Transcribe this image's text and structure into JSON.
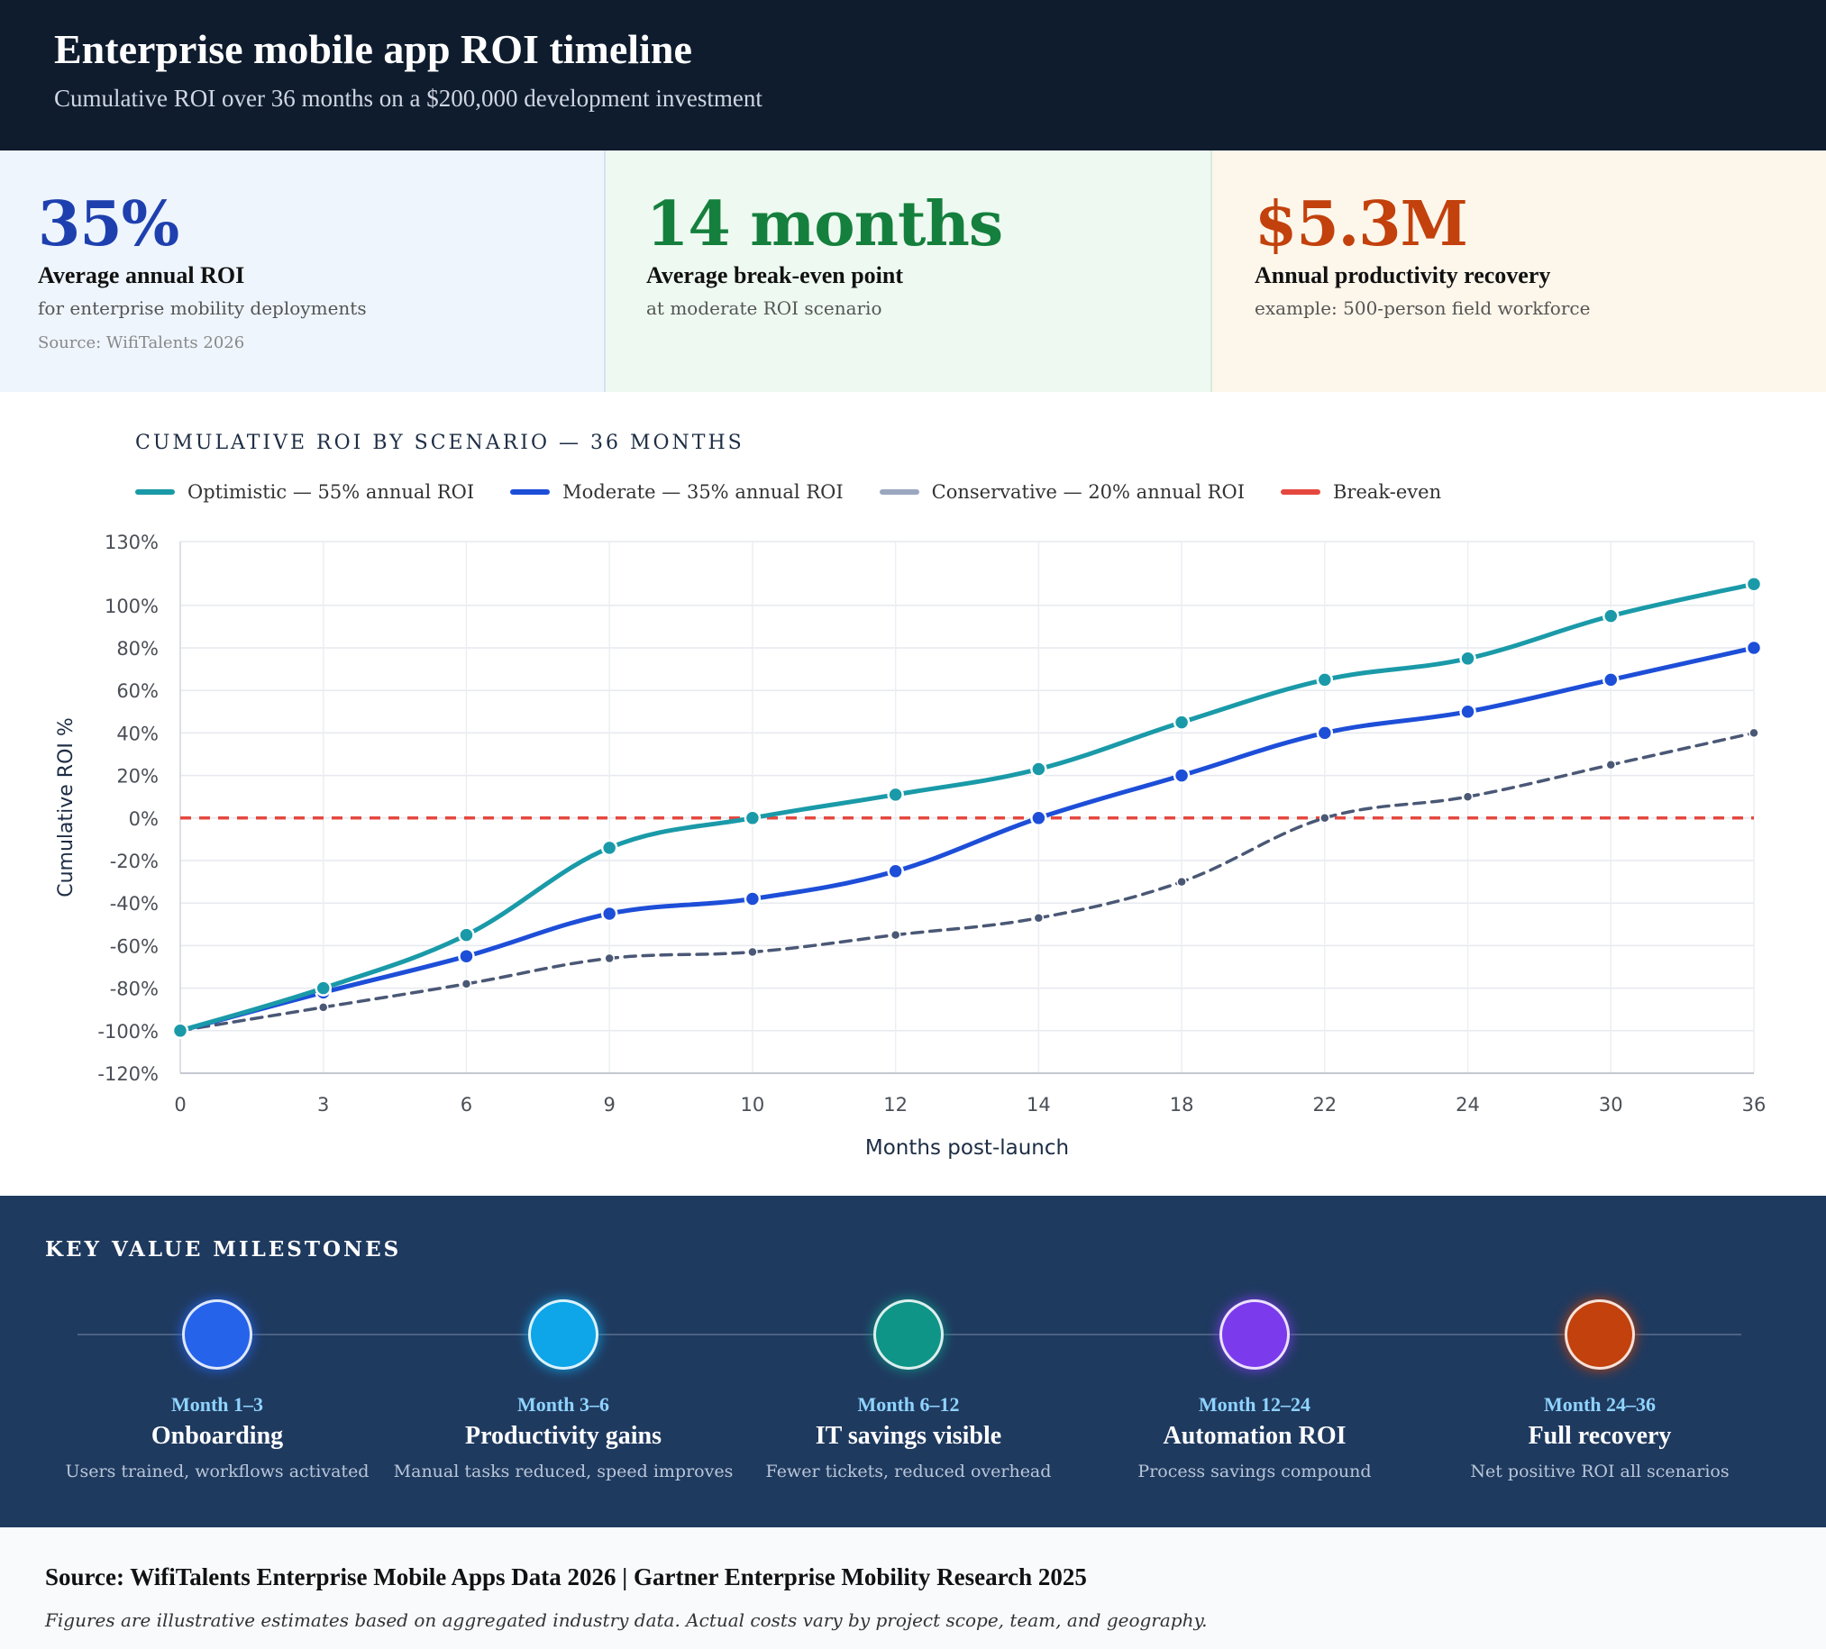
{
  "header": {
    "title": "Enterprise mobile app ROI timeline",
    "subtitle": "Cumulative ROI over 36 months on a $200,000 development investment"
  },
  "stats": [
    {
      "value": "35%",
      "label": "Average annual ROI",
      "desc": "for enterprise mobility deployments",
      "source": "Source: WifiTalents 2026",
      "color": "#1e40af"
    },
    {
      "value": "14 months",
      "label": "Average break-even point",
      "desc": "at moderate ROI scenario",
      "color": "#15803d"
    },
    {
      "value": "$5.3M",
      "label": "Annual productivity recovery",
      "desc": "example: 500-person field workforce",
      "color": "#c2410c"
    }
  ],
  "chart_data": {
    "type": "line",
    "title": "CUMULATIVE ROI BY SCENARIO — 36 MONTHS",
    "xlabel": "Months post-launch",
    "ylabel": "Cumulative ROI %",
    "x": [
      0,
      3,
      6,
      9,
      10,
      12,
      14,
      18,
      22,
      24,
      30,
      36
    ],
    "x_labels": [
      "0",
      "3",
      "6",
      "9",
      "10",
      "12",
      "14",
      "18",
      "22",
      "24",
      "30",
      "36"
    ],
    "y_ticks": [
      -120,
      -100,
      -80,
      -60,
      -40,
      -20,
      0,
      20,
      40,
      60,
      80,
      100,
      130
    ],
    "y_tick_labels": [
      "-120%",
      "-100%",
      "-80%",
      "-60%",
      "-40%",
      "-20%",
      "0%",
      "20%",
      "40%",
      "60%",
      "80%",
      "100%",
      "130%"
    ],
    "ylim": [
      -120,
      130
    ],
    "grid": true,
    "legend_position": "top-left",
    "series": [
      {
        "name": "Optimistic — 55% annual ROI",
        "color": "#1a9aa8",
        "dashed": false,
        "values": [
          -100,
          -80,
          -55,
          -14,
          0,
          11,
          23,
          45,
          65,
          75,
          95,
          110
        ]
      },
      {
        "name": "Moderate — 35% annual ROI",
        "color": "#1d4ed8",
        "dashed": false,
        "values": [
          -100,
          -82,
          -65,
          -45,
          -38,
          -25,
          0,
          20,
          40,
          50,
          65,
          80
        ]
      },
      {
        "name": "Conservative — 20% annual ROI",
        "color": "#4a5875",
        "legend_color": "#9aa7bf",
        "dashed": true,
        "values": [
          -100,
          -89,
          -78,
          -66,
          -63,
          -55,
          -47,
          -30,
          0,
          10,
          25,
          40
        ]
      }
    ],
    "reference_line": {
      "name": "Break-even",
      "y": 0,
      "color": "#e5483f"
    }
  },
  "milestones": {
    "title": "KEY VALUE MILESTONES",
    "items": [
      {
        "when": "Month 1–3",
        "name": "Onboarding",
        "note": "Users trained, workflows activated",
        "color": "#2563eb"
      },
      {
        "when": "Month 3–6",
        "name": "Productivity gains",
        "note": "Manual tasks reduced, speed improves",
        "color": "#0ea5e9"
      },
      {
        "when": "Month 6–12",
        "name": "IT savings visible",
        "note": "Fewer tickets, reduced overhead",
        "color": "#0f9488"
      },
      {
        "when": "Month 12–24",
        "name": "Automation ROI",
        "note": "Process savings compound",
        "color": "#7c3aed"
      },
      {
        "when": "Month 24–36",
        "name": "Full recovery",
        "note": "Net positive ROI all scenarios",
        "color": "#c2410c"
      }
    ]
  },
  "footer": {
    "source": "Source: WifiTalents Enterprise Mobile Apps Data 2026 | Gartner Enterprise Mobility Research 2025",
    "note": "Figures are illustrative estimates based on aggregated industry data. Actual costs vary by project scope, team, and geography."
  }
}
